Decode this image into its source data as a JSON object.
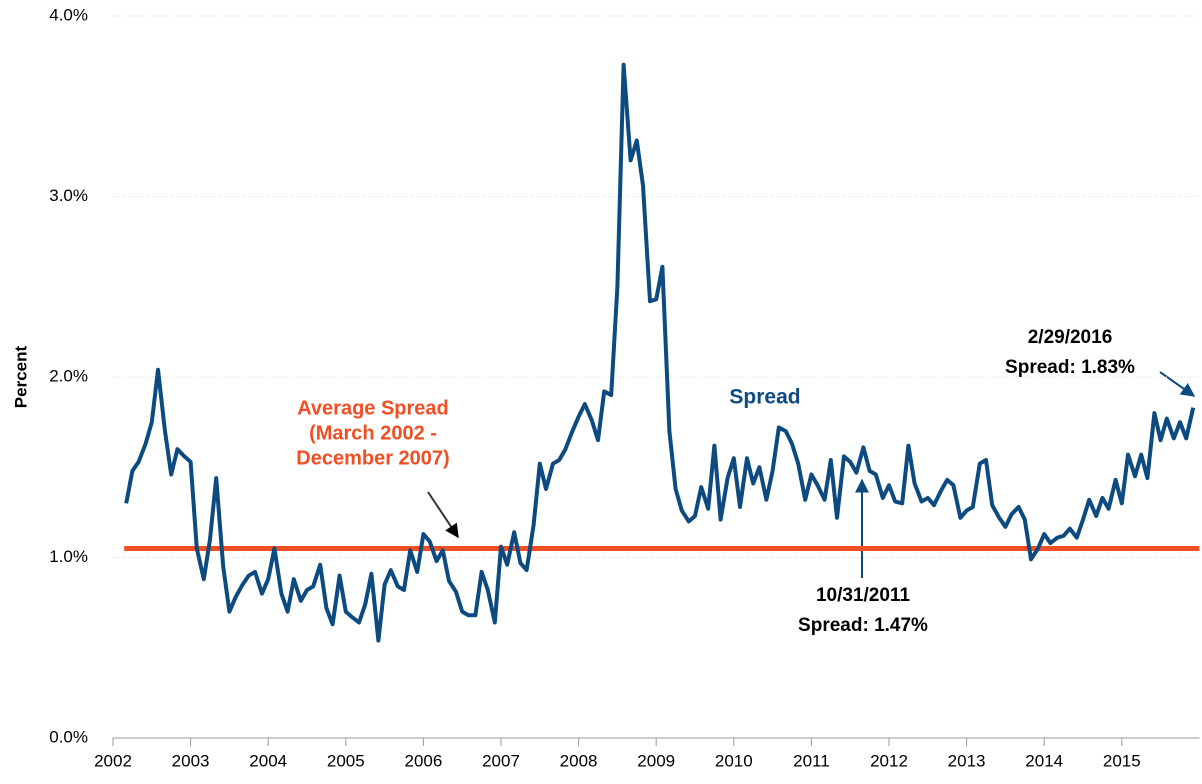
{
  "chart_data": {
    "type": "line",
    "y_label": "Percent",
    "xlim": [
      2002,
      2016
    ],
    "xticks": [
      2002,
      2003,
      2004,
      2005,
      2006,
      2007,
      2008,
      2009,
      2010,
      2011,
      2012,
      2013,
      2014,
      2015
    ],
    "ylim": [
      0,
      4
    ],
    "yticks": [
      {
        "value": 0,
        "label": "0.0%"
      },
      {
        "value": 1,
        "label": "1.0%"
      },
      {
        "value": 2,
        "label": "2.0%"
      },
      {
        "value": 3,
        "label": "3.0%"
      },
      {
        "value": 4,
        "label": "4.0%"
      }
    ],
    "grid": true,
    "x": [
      2002.17,
      2002.25,
      2002.33,
      2002.42,
      2002.5,
      2002.58,
      2002.67,
      2002.75,
      2002.83,
      2002.92,
      2003,
      2003.08,
      2003.17,
      2003.25,
      2003.33,
      2003.42,
      2003.5,
      2003.58,
      2003.67,
      2003.75,
      2003.83,
      2003.92,
      2004,
      2004.08,
      2004.17,
      2004.25,
      2004.33,
      2004.42,
      2004.5,
      2004.58,
      2004.67,
      2004.75,
      2004.83,
      2004.92,
      2005,
      2005.08,
      2005.17,
      2005.25,
      2005.33,
      2005.42,
      2005.5,
      2005.58,
      2005.67,
      2005.75,
      2005.83,
      2005.92,
      2006,
      2006.08,
      2006.17,
      2006.25,
      2006.33,
      2006.42,
      2006.5,
      2006.58,
      2006.67,
      2006.75,
      2006.83,
      2006.92,
      2007,
      2007.08,
      2007.17,
      2007.25,
      2007.33,
      2007.42,
      2007.5,
      2007.58,
      2007.67,
      2007.75,
      2007.83,
      2007.92,
      2008,
      2008.08,
      2008.17,
      2008.25,
      2008.33,
      2008.42,
      2008.5,
      2008.58,
      2008.67,
      2008.75,
      2008.83,
      2008.92,
      2009,
      2009.08,
      2009.17,
      2009.25,
      2009.33,
      2009.42,
      2009.5,
      2009.58,
      2009.67,
      2009.75,
      2009.83,
      2009.92,
      2010,
      2010.08,
      2010.17,
      2010.25,
      2010.33,
      2010.42,
      2010.5,
      2010.58,
      2010.67,
      2010.75,
      2010.83,
      2010.92,
      2011,
      2011.08,
      2011.17,
      2011.25,
      2011.33,
      2011.42,
      2011.5,
      2011.58,
      2011.67,
      2011.75,
      2011.83,
      2011.92,
      2012,
      2012.08,
      2012.17,
      2012.25,
      2012.33,
      2012.42,
      2012.5,
      2012.58,
      2012.67,
      2012.75,
      2012.83,
      2012.92,
      2013,
      2013.08,
      2013.17,
      2013.25,
      2013.33,
      2013.42,
      2013.5,
      2013.58,
      2013.67,
      2013.75,
      2013.83,
      2013.92,
      2014,
      2014.08,
      2014.17,
      2014.25,
      2014.33,
      2014.42,
      2014.5,
      2014.58,
      2014.67,
      2014.75,
      2014.83,
      2014.92,
      2015,
      2015.08,
      2015.17,
      2015.25,
      2015.33,
      2015.42,
      2015.5,
      2015.58,
      2015.67,
      2015.75,
      2015.83,
      2015.92
    ],
    "series": [
      {
        "name": "Spread",
        "color": "#0c4a80",
        "values": [
          1.3,
          1.48,
          1.53,
          1.63,
          1.75,
          2.04,
          1.7,
          1.46,
          1.6,
          1.56,
          1.53,
          1.05,
          0.88,
          1.1,
          1.44,
          0.95,
          0.7,
          0.78,
          0.85,
          0.9,
          0.92,
          0.8,
          0.88,
          1.05,
          0.8,
          0.7,
          0.88,
          0.76,
          0.82,
          0.84,
          0.96,
          0.72,
          0.63,
          0.9,
          0.7,
          0.67,
          0.64,
          0.74,
          0.91,
          0.54,
          0.85,
          0.93,
          0.84,
          0.82,
          1.04,
          0.92,
          1.13,
          1.09,
          0.98,
          1.04,
          0.87,
          0.81,
          0.7,
          0.68,
          0.68,
          0.92,
          0.82,
          0.64,
          1.06,
          0.96,
          1.14,
          0.97,
          0.93,
          1.18,
          1.52,
          1.38,
          1.52,
          1.54,
          1.6,
          1.7,
          1.78,
          1.85,
          1.76,
          1.65,
          1.92,
          1.9,
          2.5,
          3.73,
          3.2,
          3.31,
          3.06,
          2.42,
          2.43,
          2.61,
          1.7,
          1.38,
          1.26,
          1.2,
          1.23,
          1.39,
          1.27,
          1.62,
          1.21,
          1.44,
          1.55,
          1.28,
          1.55,
          1.41,
          1.5,
          1.32,
          1.48,
          1.72,
          1.7,
          1.63,
          1.52,
          1.32,
          1.46,
          1.4,
          1.32,
          1.54,
          1.22,
          1.56,
          1.53,
          1.47,
          1.61,
          1.48,
          1.46,
          1.33,
          1.4,
          1.31,
          1.3,
          1.62,
          1.41,
          1.31,
          1.33,
          1.29,
          1.37,
          1.43,
          1.4,
          1.22,
          1.26,
          1.28,
          1.52,
          1.54,
          1.29,
          1.22,
          1.17,
          1.24,
          1.28,
          1.21,
          0.99,
          1.05,
          1.13,
          1.08,
          1.11,
          1.12,
          1.16,
          1.11,
          1.21,
          1.32,
          1.23,
          1.33,
          1.27,
          1.43,
          1.3,
          1.57,
          1.45,
          1.57,
          1.44,
          1.8,
          1.65,
          1.77,
          1.66,
          1.75,
          1.66,
          1.83
        ]
      }
    ],
    "average": {
      "value": 1.05,
      "color": "#f04e23",
      "label": [
        "Average Spread",
        "(March 2002 -",
        "December 2007)"
      ]
    },
    "annotations": [
      {
        "lines": [
          "10/31/2011",
          "Spread: 1.47%"
        ]
      },
      {
        "lines": [
          "2/29/2016",
          "Spread: 1.83%"
        ]
      }
    ]
  }
}
